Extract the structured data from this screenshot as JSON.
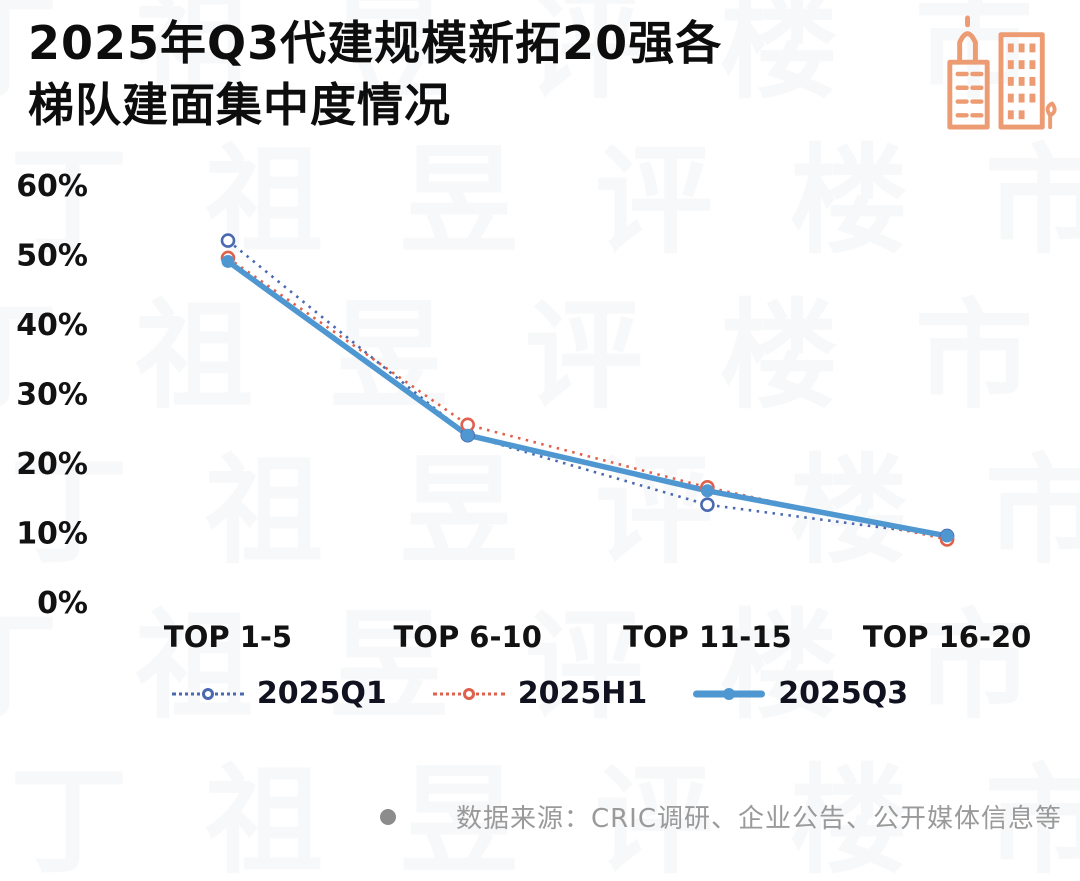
{
  "header": {
    "title_line1": "2025年Q3代建规模新拓20强各",
    "title_line2": "梯队建面集中度情况"
  },
  "brand": {
    "icon": "buildings-icon",
    "icon_color": "#EC9B72"
  },
  "watermark": {
    "text": "丁祖昱评楼市"
  },
  "chart_data": {
    "type": "line",
    "title": "2025年Q3代建规模新拓20强各梯队建面集中度情况",
    "categories": [
      "TOP 1-5",
      "TOP 6-10",
      "TOP 11-15",
      "TOP 16-20"
    ],
    "series": [
      {
        "name": "2025Q1",
        "values": [
          52,
          24,
          14,
          9.5
        ],
        "color": "#4A69B1",
        "style": "dotted",
        "marker": "hollow"
      },
      {
        "name": "2025H1",
        "values": [
          49.5,
          25.5,
          16.5,
          9
        ],
        "color": "#DF604B",
        "style": "dotted",
        "marker": "hollow"
      },
      {
        "name": "2025Q3",
        "values": [
          49,
          24,
          16,
          9.5
        ],
        "color": "#4E97D1",
        "style": "solid",
        "marker": "filled"
      }
    ],
    "xlabel": "",
    "ylabel": "",
    "ylim": [
      0,
      60
    ],
    "ytick_step": 10,
    "ytick_format": "percent",
    "grid": false,
    "legend_position": "bottom"
  },
  "footer": {
    "source_text": "数据来源：CRIC调研、企业公告、公开媒体信息等"
  }
}
